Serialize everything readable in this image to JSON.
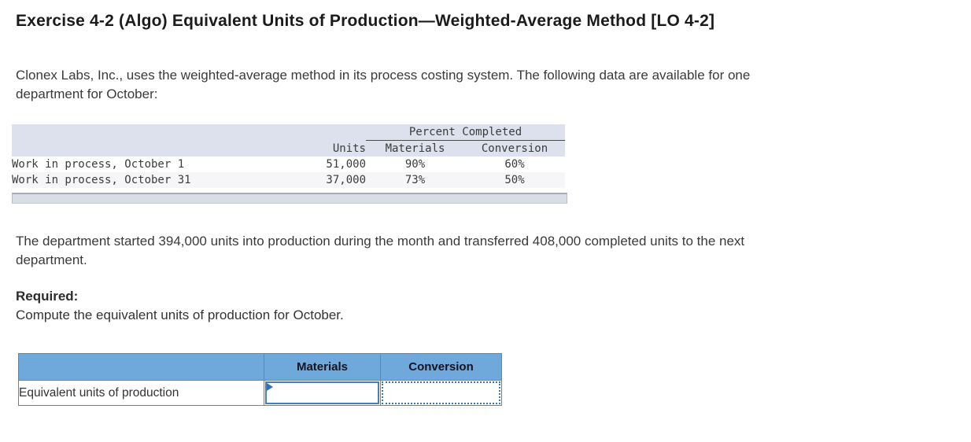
{
  "page": {
    "title": "Exercise 4-2 (Algo) Equivalent Units of Production—Weighted-Average Method [LO 4-2]",
    "intro": {
      "line1": "Clonex Labs, Inc., uses the weighted-average method in its process costing system. The following data are available for one",
      "line2": "department for October:"
    },
    "middle": {
      "line1": "The department started 394,000 units into production during the month and transferred 408,000 completed units to the next",
      "line2": "department."
    },
    "required_label": "Required:",
    "required_text": "Compute the equivalent units of production for October."
  },
  "data_table": {
    "group_header": "Percent Completed",
    "columns": {
      "units": "Units",
      "materials": "Materials",
      "conversion": "Conversion"
    },
    "rows": [
      {
        "label": "Work in process, October 1",
        "units": "51,000",
        "materials": "90%",
        "conversion": "60%"
      },
      {
        "label": "Work in process, October 31",
        "units": "37,000",
        "materials": "73%",
        "conversion": "50%"
      }
    ]
  },
  "answer_table": {
    "columns": {
      "materials": "Materials",
      "conversion": "Conversion"
    },
    "row_label": "Equivalent units of production",
    "materials_value": "",
    "conversion_value": ""
  },
  "colors": {
    "answer_header_blue": "#6fa9dc",
    "input_border_blue": "#4a7ebb",
    "dotted_border_blue": "#3a78bd",
    "cell_marker_blue": "#2e75b6",
    "exhibit_header_bg": "#dce1ed",
    "exhibit_alt_row_bg": "#f6f6f8",
    "scrollbar_bg": "#d9dde6",
    "grid_border_gray": "#7f7f7f"
  }
}
